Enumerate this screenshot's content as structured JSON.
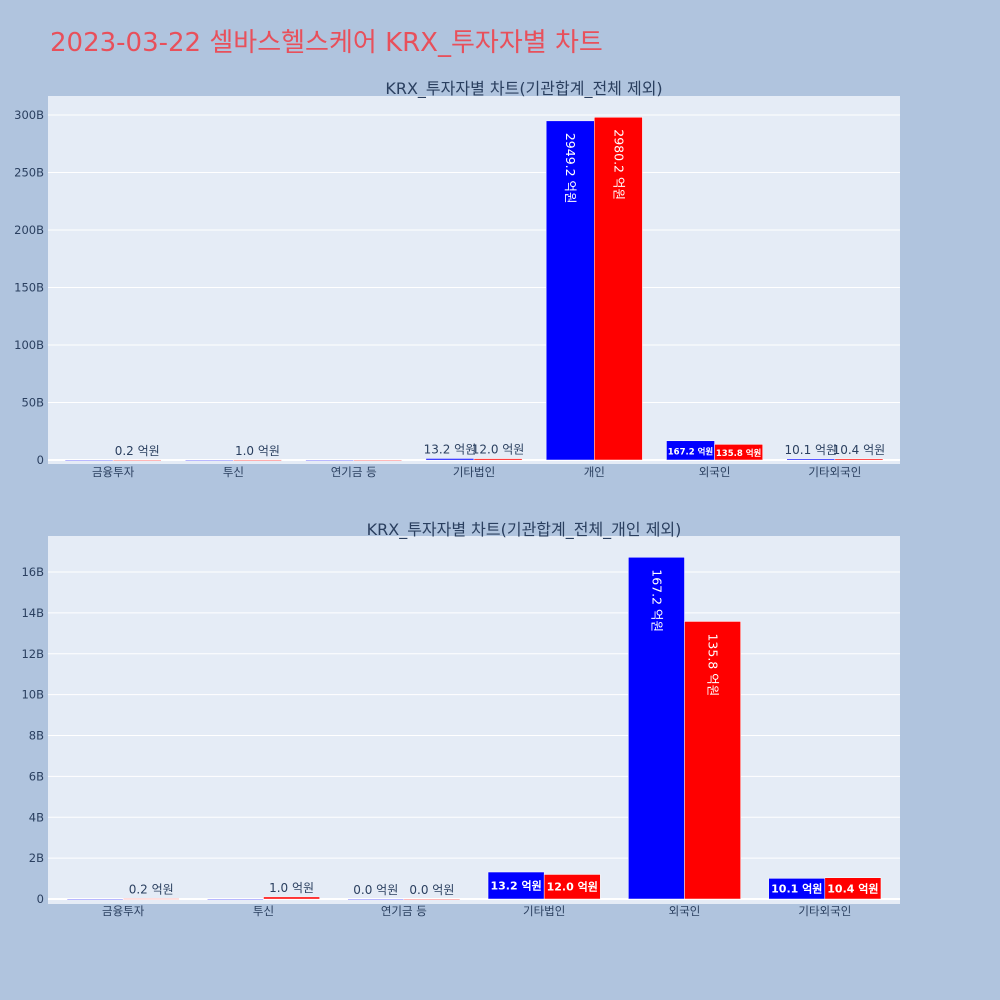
{
  "page_title": "2023-03-22 셀바스헬스케어 KRX_투자자별 차트",
  "colors": {
    "background": "#b0c4de",
    "plot_bg": "#e5ecf6",
    "title": "#e8505b",
    "series_a": "#0000ff",
    "series_b": "#ff0000"
  },
  "chart_data": [
    {
      "type": "bar",
      "title": "KRX_투자자별 차트(기관합계_전체 제외)",
      "categories": [
        "금융투자",
        "투신",
        "연기금 등",
        "기타법인",
        "개인",
        "외국인",
        "기타외국인"
      ],
      "ylim": [
        0,
        310
      ],
      "yticks": [
        0,
        50,
        100,
        150,
        200,
        250,
        300
      ],
      "ytick_labels": [
        "0",
        "50B",
        "100B",
        "150B",
        "200B",
        "250B",
        "300B"
      ],
      "grid": true,
      "series": [
        {
          "color": "#0000ff",
          "values": [
            0,
            0,
            0,
            1.32,
            294.92,
            16.72,
            1.01
          ],
          "labels": [
            "",
            "",
            "",
            "13.2 억원",
            "2949.2 억원",
            "167.2 억원",
            "10.1 억원"
          ]
        },
        {
          "color": "#ff0000",
          "values": [
            0.02,
            0.1,
            0,
            1.2,
            298.02,
            13.58,
            1.04
          ],
          "labels": [
            "0.2 억원",
            "1.0 억원",
            "",
            "12.0 억원",
            "2980.2 억원",
            "135.8 억원",
            "10.4 억원"
          ]
        }
      ]
    },
    {
      "type": "bar",
      "title": "KRX_투자자별 차트(기관합계_전체_개인 제외)",
      "categories": [
        "금융투자",
        "투신",
        "연기금 등",
        "기타법인",
        "외국인",
        "기타외국인"
      ],
      "ylim": [
        0,
        17.7
      ],
      "yticks": [
        0,
        2,
        4,
        6,
        8,
        10,
        12,
        14,
        16
      ],
      "ytick_labels": [
        "0",
        "2B",
        "4B",
        "6B",
        "8B",
        "10B",
        "12B",
        "14B",
        "16B"
      ],
      "grid": true,
      "series": [
        {
          "color": "#0000ff",
          "values": [
            0,
            0,
            0,
            1.32,
            16.72,
            1.01
          ],
          "labels": [
            "",
            "",
            "0.0 억원",
            "13.2 억원",
            "167.2 억원",
            "10.1 억원"
          ]
        },
        {
          "color": "#ff0000",
          "values": [
            0.02,
            0.1,
            0,
            1.2,
            13.58,
            1.04
          ],
          "labels": [
            "0.2 억원",
            "1.0 억원",
            "0.0 억원",
            "12.0 억원",
            "135.8 억원",
            "10.4 억원"
          ]
        }
      ]
    }
  ]
}
